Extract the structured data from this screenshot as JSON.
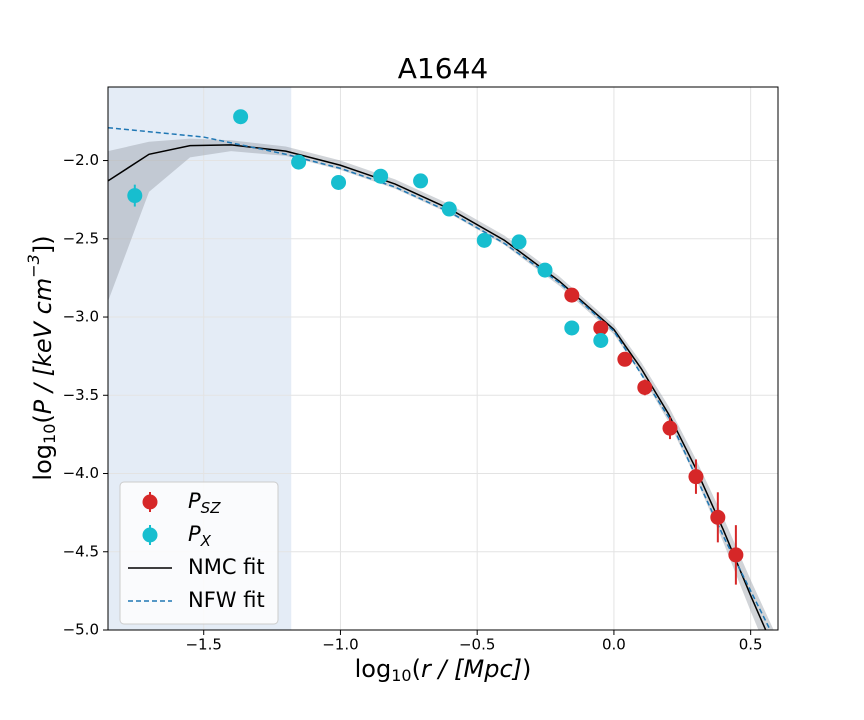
{
  "chart_data": {
    "type": "scatter",
    "title": "A1644",
    "x_label": [
      "log",
      "10",
      "(",
      "r / [Mpc]",
      ")"
    ],
    "y_label": [
      "log",
      "10",
      "(",
      "P / [keV cm",
      "−3",
      "])"
    ],
    "xlim": [
      -1.85,
      0.6
    ],
    "ylim": [
      -5.0,
      -1.53
    ],
    "xticks": [
      {
        "value": -1.5,
        "label": "−1.5"
      },
      {
        "value": -1.0,
        "label": "−1.0"
      },
      {
        "value": -0.5,
        "label": "−0.5"
      },
      {
        "value": 0.0,
        "label": "0.0"
      },
      0.5
    ],
    "yticks": [
      {
        "value": -2.0,
        "label": "−2.0"
      },
      {
        "value": -2.5,
        "label": "−2.5"
      },
      {
        "value": -3.0,
        "label": "−3.0"
      },
      {
        "value": -3.5,
        "label": "−3.5"
      },
      {
        "value": -4.0,
        "label": "−4.0"
      },
      {
        "value": -4.5,
        "label": "−4.5"
      },
      {
        "value": -5.0,
        "label": "−5.0"
      }
    ],
    "grid": true,
    "legend": "lower left",
    "shaded_region": {
      "x": [
        -1.85,
        -1.18
      ],
      "color": "#dbe6f3"
    },
    "series": [
      {
        "name": "P",
        "name_sub": "SZ",
        "kind": "points",
        "color": "#d62728",
        "x": [
          -0.154,
          -0.048,
          0.04,
          0.113,
          0.205,
          0.3,
          0.38,
          0.446
        ],
        "values": [
          -2.86,
          -3.07,
          -3.27,
          -3.45,
          -3.71,
          -4.02,
          -4.28,
          -4.52
        ],
        "errors": [
          0.03,
          0.03,
          0.03,
          0.05,
          0.07,
          0.11,
          0.16,
          0.19
        ]
      },
      {
        "name": "P",
        "name_sub": "X",
        "kind": "points",
        "color": "#17becf",
        "x": [
          -1.752,
          -1.365,
          -1.153,
          -1.007,
          -0.853,
          -0.707,
          -0.602,
          -0.474,
          -0.347,
          -0.252,
          -0.154,
          -0.048
        ],
        "values": [
          -2.224,
          -1.72,
          -2.01,
          -2.14,
          -2.1,
          -2.13,
          -2.31,
          -2.51,
          -2.52,
          -2.7,
          -3.07,
          -3.15
        ],
        "errors": [
          0.07,
          0.02,
          0.02,
          0.02,
          0.02,
          0.02,
          0.02,
          0.02,
          0.02,
          0.02,
          0.02,
          0.02
        ]
      },
      {
        "name": "NMC fit",
        "kind": "line",
        "color": "#000000",
        "band_color": "#9aa0a8",
        "x": [
          -1.85,
          -1.7,
          -1.55,
          -1.4,
          -1.2,
          -1.0,
          -0.8,
          -0.6,
          -0.4,
          -0.2,
          0.0,
          0.1,
          0.2,
          0.3,
          0.4,
          0.5,
          0.6
        ],
        "values": [
          -2.13,
          -1.96,
          -1.905,
          -1.9,
          -1.94,
          -2.03,
          -2.15,
          -2.31,
          -2.51,
          -2.77,
          -3.08,
          -3.33,
          -3.62,
          -3.97,
          -4.36,
          -4.78,
          -5.18
        ],
        "band_lower": [
          -2.9,
          -2.2,
          -1.98,
          -1.94,
          -1.97,
          -2.06,
          -2.18,
          -2.34,
          -2.54,
          -2.8,
          -3.11,
          -3.37,
          -3.67,
          -4.03,
          -4.44,
          -4.88,
          -5.3
        ],
        "band_upper": [
          -1.94,
          -1.88,
          -1.86,
          -1.87,
          -1.91,
          -2.0,
          -2.12,
          -2.28,
          -2.48,
          -2.74,
          -3.05,
          -3.29,
          -3.57,
          -3.91,
          -4.28,
          -4.68,
          -5.06
        ]
      },
      {
        "name": "NFW fit",
        "kind": "line",
        "dashed": true,
        "color": "#1f77b4",
        "x": [
          -1.85,
          -1.5,
          -1.2,
          -1.0,
          -0.8,
          -0.6,
          -0.4,
          -0.2,
          0.0,
          0.2,
          0.4,
          0.6
        ],
        "values": [
          -1.79,
          -1.85,
          -1.96,
          -2.05,
          -2.17,
          -2.33,
          -2.53,
          -2.78,
          -3.09,
          -3.64,
          -4.4,
          -5.1
        ]
      }
    ]
  }
}
